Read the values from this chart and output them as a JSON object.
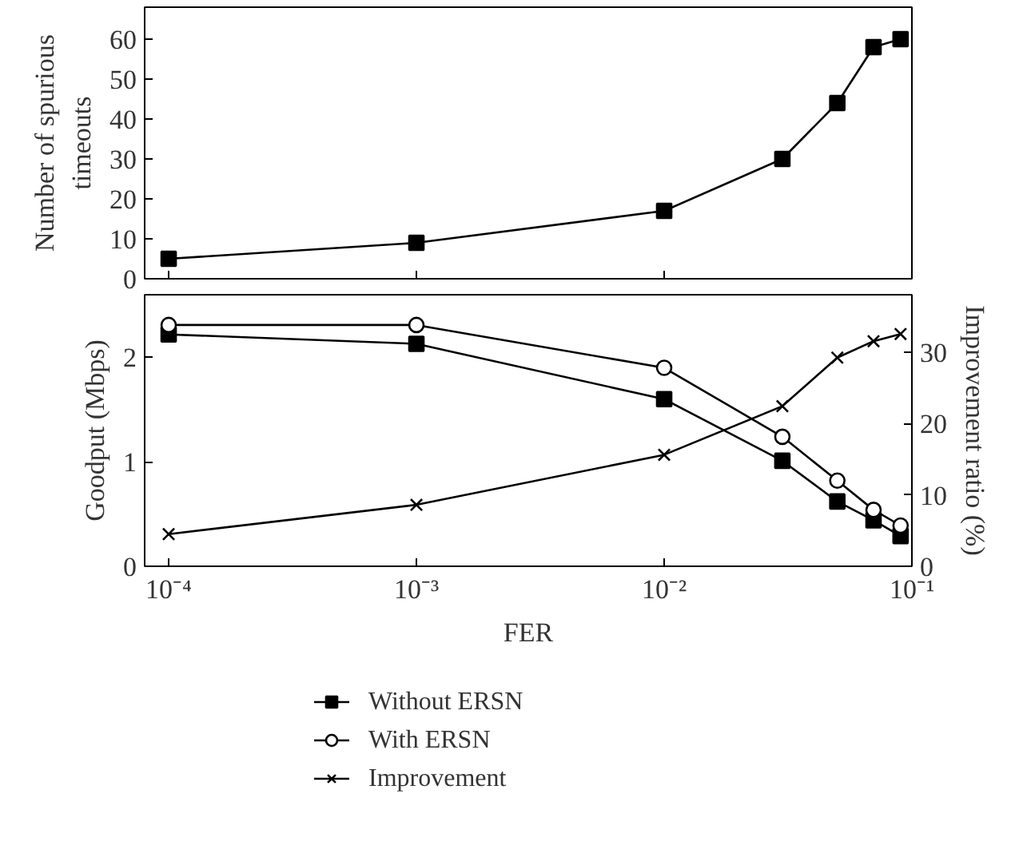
{
  "chart_data": [
    {
      "type": "line",
      "ylabel": "Number of spurious timeouts",
      "log": "x",
      "xlim": [
        8e-05,
        0.1
      ],
      "xticks": [
        {
          "value": 0.0001,
          "label": "10⁻⁴"
        },
        {
          "value": 0.001,
          "label": "10⁻³"
        },
        {
          "value": 0.01,
          "label": "10⁻²"
        },
        {
          "value": 0.1,
          "label": "10⁻¹"
        }
      ],
      "ylim": [
        0,
        68
      ],
      "yticks": [
        0,
        10,
        20,
        30,
        40,
        50,
        60
      ],
      "tick_labels": "y",
      "grid": false,
      "legend": false,
      "x": [
        0.0001,
        0.001,
        0.01,
        0.03,
        0.05,
        0.07,
        0.09
      ],
      "series": [
        {
          "color": "#000000",
          "marker": "square",
          "values": [
            5,
            9,
            17,
            30,
            44,
            58,
            60
          ]
        }
      ]
    },
    {
      "type": "line",
      "xlabel": "FER",
      "ylabel": "Goodput (Mbps)",
      "y2label": "Improvement ratio (%)",
      "log": "x",
      "xlim": [
        8e-05,
        0.1
      ],
      "xticks": [
        {
          "value": 0.0001,
          "label": "10⁻⁴"
        },
        {
          "value": 0.001,
          "label": "10⁻³"
        },
        {
          "value": 0.01,
          "label": "10⁻²"
        },
        {
          "value": 0.1,
          "label": "10⁻¹"
        }
      ],
      "ylim": [
        0,
        2.6
      ],
      "yticks": [
        0,
        1,
        2
      ],
      "y2lim": [
        0,
        38
      ],
      "y2ticks": [
        0,
        10,
        20,
        30
      ],
      "grid": false,
      "legend": "bottom",
      "x": [
        0.0001,
        0.001,
        0.01,
        0.03,
        0.05,
        0.07,
        0.09
      ],
      "series": [
        {
          "name": "Without ERSN",
          "color": "#000000",
          "marker": "square",
          "values": [
            2.22,
            2.13,
            1.6,
            1.01,
            0.62,
            0.44,
            0.29
          ]
        },
        {
          "name": "With ERSN",
          "color": "#000000",
          "marker": "circle",
          "values": [
            2.31,
            2.31,
            1.9,
            1.24,
            0.82,
            0.54,
            0.39
          ]
        },
        {
          "name": "Improvement",
          "color": "#000000",
          "marker": "cross",
          "axis": "y2",
          "values": [
            4.5,
            8.6,
            15.6,
            22.4,
            29.2,
            31.5,
            32.5
          ]
        }
      ]
    }
  ]
}
